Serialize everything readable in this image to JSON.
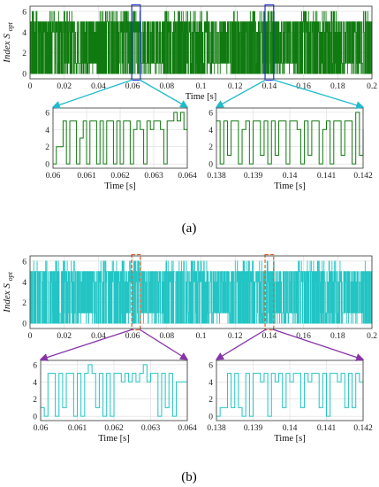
{
  "chart_data": [
    {
      "id": "a_main",
      "type": "line",
      "panel": "(a)",
      "color": "#0f7a0f",
      "xlabel": "Time [s]",
      "ylabel": "Index S",
      "ylabel_sub": "opt",
      "xlim": [
        0,
        0.2
      ],
      "ylim": [
        -0.5,
        6.5
      ],
      "xticks": [
        "0",
        "0.02",
        "0.04",
        "0.06",
        "0.08",
        "0.1",
        "0.12",
        "0.14",
        "0.16",
        "0.18",
        "0.2"
      ],
      "yticks": [
        "0",
        "2",
        "4",
        "6"
      ],
      "highlight_ranges": [
        [
          0.06,
          0.064
        ],
        [
          0.138,
          0.142
        ]
      ],
      "highlight_color": "#2233dd",
      "connector_color": "#22bbcc",
      "series": [
        {
          "values_range": [
            0,
            6
          ],
          "sample_step": 0.0001
        }
      ]
    },
    {
      "id": "a_zoom1",
      "type": "line",
      "panel": "(a)",
      "color": "#0f7a0f",
      "xlabel": "Time [s]",
      "xlim": [
        0.06,
        0.064
      ],
      "ylim": [
        -0.5,
        6.5
      ],
      "xticks": [
        "0.06",
        "0.061",
        "0.062",
        "0.063",
        "0.064"
      ],
      "yticks": [
        "0",
        "2",
        "4",
        "6"
      ],
      "x": [
        0.06,
        0.0601,
        0.0602,
        0.0603,
        0.0604,
        0.0605,
        0.0606,
        0.0607,
        0.0608,
        0.0609,
        0.061,
        0.0611,
        0.0612,
        0.0613,
        0.0614,
        0.0615,
        0.0616,
        0.0617,
        0.0618,
        0.0619,
        0.062,
        0.0621,
        0.0622,
        0.0623,
        0.0624,
        0.0625,
        0.0626,
        0.0627,
        0.0628,
        0.0629,
        0.063,
        0.0631,
        0.0632,
        0.0633,
        0.0634,
        0.0635,
        0.0636,
        0.0637,
        0.0638,
        0.0639,
        0.064
      ],
      "y": [
        0,
        2,
        2,
        5,
        0,
        5,
        5,
        0,
        3,
        5,
        0,
        5,
        5,
        0,
        5,
        0,
        5,
        5,
        0,
        5,
        0,
        5,
        5,
        0,
        4,
        5,
        4,
        0,
        5,
        4,
        5,
        5,
        4,
        0,
        5,
        5,
        6,
        5,
        6,
        4,
        4
      ]
    },
    {
      "id": "a_zoom2",
      "type": "line",
      "panel": "(a)",
      "color": "#0f7a0f",
      "xlabel": "Time [s]",
      "xlim": [
        0.138,
        0.142
      ],
      "ylim": [
        -0.5,
        6.5
      ],
      "xticks": [
        "0.138",
        "0.139",
        "0.14",
        "0.141",
        "0.142"
      ],
      "yticks": [
        "0",
        "2",
        "4",
        "6"
      ],
      "x": [
        0.138,
        0.1381,
        0.1382,
        0.1383,
        0.1384,
        0.1385,
        0.1386,
        0.1387,
        0.1388,
        0.1389,
        0.139,
        0.1391,
        0.1392,
        0.1393,
        0.1394,
        0.1395,
        0.1396,
        0.1397,
        0.1398,
        0.1399,
        0.14,
        0.1401,
        0.1402,
        0.1403,
        0.1404,
        0.1405,
        0.1406,
        0.1407,
        0.1408,
        0.1409,
        0.141,
        0.1411,
        0.1412,
        0.1413,
        0.1414,
        0.1415,
        0.1416,
        0.1417,
        0.1418,
        0.1419,
        0.142
      ],
      "y": [
        5,
        0,
        5,
        1,
        5,
        5,
        0,
        4,
        5,
        0,
        5,
        5,
        1,
        5,
        0,
        5,
        1,
        5,
        5,
        0,
        5,
        5,
        4,
        0,
        5,
        1,
        5,
        5,
        0,
        4,
        5,
        0,
        5,
        5,
        1,
        5,
        5,
        0,
        6,
        1,
        4
      ]
    },
    {
      "id": "b_main",
      "type": "line",
      "panel": "(b)",
      "color": "#22c4c4",
      "ylabel": "Index S",
      "ylabel_sub": "opt",
      "xlim": [
        0,
        0.2
      ],
      "ylim": [
        -0.5,
        6.5
      ],
      "xticks": [
        "0",
        "0.02",
        "0.04",
        "0.06",
        "0.08",
        "0.1",
        "0.12",
        "0.14",
        "0.16",
        "0.18",
        "0.2"
      ],
      "yticks": [
        "0",
        "2",
        "4",
        "6"
      ],
      "highlight_ranges": [
        [
          0.06,
          0.064
        ],
        [
          0.138,
          0.142
        ]
      ],
      "highlight_color": "#e06030",
      "connector_color": "#8833aa",
      "series": [
        {
          "values_range": [
            0,
            6
          ],
          "sample_step": 0.0001
        }
      ]
    },
    {
      "id": "b_zoom1",
      "type": "line",
      "panel": "(b)",
      "color": "#22c4c4",
      "xlabel": "Time [s]",
      "xlim": [
        0.06,
        0.064
      ],
      "ylim": [
        -0.5,
        6.5
      ],
      "xticks": [
        "0.06",
        "0.061",
        "0.062",
        "0.063",
        "0.064"
      ],
      "yticks": [
        "0",
        "2",
        "4",
        "6"
      ],
      "x": [
        0.06,
        0.0601,
        0.0602,
        0.0603,
        0.0604,
        0.0605,
        0.0606,
        0.0607,
        0.0608,
        0.0609,
        0.061,
        0.0611,
        0.0612,
        0.0613,
        0.0614,
        0.0615,
        0.0616,
        0.0617,
        0.0618,
        0.0619,
        0.062,
        0.0621,
        0.0622,
        0.0623,
        0.0624,
        0.0625,
        0.0626,
        0.0627,
        0.0628,
        0.0629,
        0.063,
        0.0631,
        0.0632,
        0.0633,
        0.0634,
        0.0635,
        0.0636,
        0.0637,
        0.0638,
        0.0639,
        0.064
      ],
      "y": [
        1,
        0,
        5,
        5,
        0,
        5,
        1,
        5,
        5,
        0,
        5,
        0,
        5,
        6,
        5,
        1,
        5,
        0,
        5,
        0,
        5,
        5,
        4,
        5,
        4,
        5,
        4,
        5,
        6,
        4,
        5,
        5,
        0,
        5,
        1,
        5,
        0,
        4,
        4,
        4,
        4
      ]
    },
    {
      "id": "b_zoom2",
      "type": "line",
      "panel": "(b)",
      "color": "#22c4c4",
      "xlabel": "Time [s]",
      "xlim": [
        0.138,
        0.142
      ],
      "ylim": [
        -0.5,
        6.5
      ],
      "xticks": [
        "0.138",
        "0.139",
        "0.14",
        "0.141",
        "0.142"
      ],
      "yticks": [
        "0",
        "2",
        "4",
        "6"
      ],
      "x": [
        0.138,
        0.1381,
        0.1382,
        0.1383,
        0.1384,
        0.1385,
        0.1386,
        0.1387,
        0.1388,
        0.1389,
        0.139,
        0.1391,
        0.1392,
        0.1393,
        0.1394,
        0.1395,
        0.1396,
        0.1397,
        0.1398,
        0.1399,
        0.14,
        0.1401,
        0.1402,
        0.1403,
        0.1404,
        0.1405,
        0.1406,
        0.1407,
        0.1408,
        0.1409,
        0.141,
        0.1411,
        0.1412,
        0.1413,
        0.1414,
        0.1415,
        0.1416,
        0.1417,
        0.1418,
        0.1419,
        0.142
      ],
      "y": [
        0,
        1,
        1,
        5,
        1,
        5,
        1,
        0,
        5,
        0,
        5,
        5,
        4,
        5,
        0,
        5,
        4,
        5,
        1,
        5,
        4,
        5,
        5,
        1,
        5,
        4,
        5,
        5,
        1,
        5,
        0,
        5,
        5,
        4,
        5,
        1,
        5,
        1,
        5,
        4,
        4
      ]
    }
  ],
  "labels": {
    "panel_a": "(a)",
    "panel_b": "(b)"
  }
}
